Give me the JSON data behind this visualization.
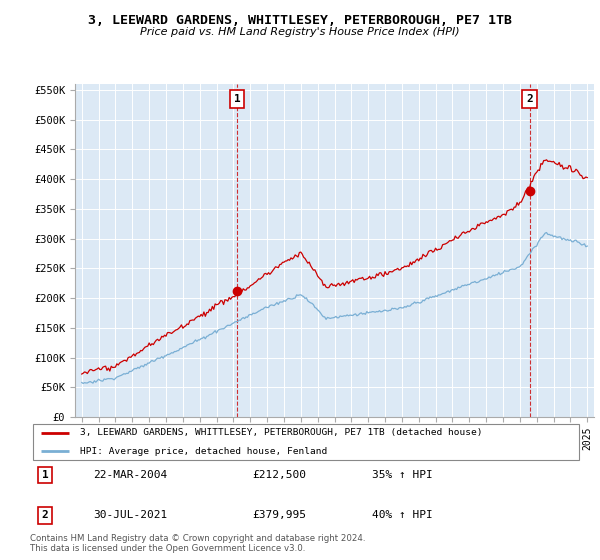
{
  "title": "3, LEEWARD GARDENS, WHITTLESEY, PETERBOROUGH, PE7 1TB",
  "subtitle": "Price paid vs. HM Land Registry's House Price Index (HPI)",
  "legend_line1": "3, LEEWARD GARDENS, WHITTLESEY, PETERBOROUGH, PE7 1TB (detached house)",
  "legend_line2": "HPI: Average price, detached house, Fenland",
  "sale1_label": "1",
  "sale1_date": "22-MAR-2004",
  "sale1_price": "£212,500",
  "sale1_hpi": "35% ↑ HPI",
  "sale2_label": "2",
  "sale2_date": "30-JUL-2021",
  "sale2_price": "£379,995",
  "sale2_hpi": "40% ↑ HPI",
  "footer": "Contains HM Land Registry data © Crown copyright and database right 2024.\nThis data is licensed under the Open Government Licence v3.0.",
  "red_color": "#cc0000",
  "blue_color": "#7aafd4",
  "plot_bg": "#dce9f5",
  "ylim": [
    0,
    560000
  ],
  "yticks": [
    0,
    50000,
    100000,
    150000,
    200000,
    250000,
    300000,
    350000,
    400000,
    450000,
    500000,
    550000
  ],
  "ytick_labels": [
    "£0",
    "£50K",
    "£100K",
    "£150K",
    "£200K",
    "£250K",
    "£300K",
    "£350K",
    "£400K",
    "£450K",
    "£500K",
    "£550K"
  ],
  "sale1_year": 2004.22,
  "sale1_value": 212500,
  "sale2_year": 2021.58,
  "sale2_value": 379995
}
